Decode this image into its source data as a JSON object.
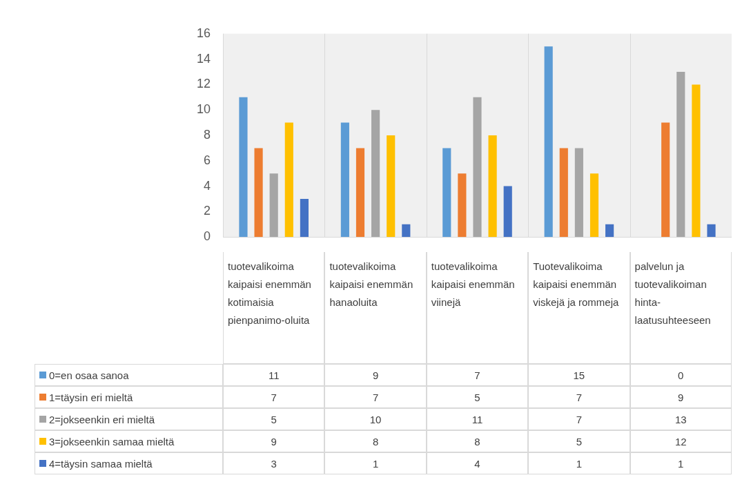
{
  "chart_data": {
    "type": "bar",
    "categories": [
      "tuotevalikoima kaipaisi enemmän kotimaisia pienpanimo-oluita",
      "tuotevalikoima kaipaisi enemmän hanaoluita",
      "tuotevalikoima kaipaisi enemmän viinejä",
      "Tuotevalikoima kaipaisi enemmän viskejä ja rommeja",
      "palvelun ja tuotevalikoiman hinta-laatusuhteeseen"
    ],
    "series": [
      {
        "name": "0=en osaa sanoa",
        "color": "#5b9bd5",
        "values": [
          11,
          9,
          7,
          15,
          0
        ]
      },
      {
        "name": "1=täysin eri mieltä",
        "color": "#ed7d31",
        "values": [
          7,
          7,
          5,
          7,
          9
        ]
      },
      {
        "name": "2=jokseenkin eri mieltä",
        "color": "#a5a5a5",
        "values": [
          5,
          10,
          11,
          7,
          13
        ]
      },
      {
        "name": "3=jokseenkin samaa mieltä",
        "color": "#ffc000",
        "values": [
          9,
          8,
          8,
          5,
          12
        ]
      },
      {
        "name": "4=täysin samaa mieltä",
        "color": "#4472c4",
        "values": [
          3,
          1,
          4,
          1,
          1
        ]
      }
    ],
    "ylim": [
      0,
      16
    ],
    "yticks": [
      0,
      2,
      4,
      6,
      8,
      10,
      12,
      14,
      16
    ],
    "grid": false,
    "legend": "bottom",
    "data_labels": true
  }
}
